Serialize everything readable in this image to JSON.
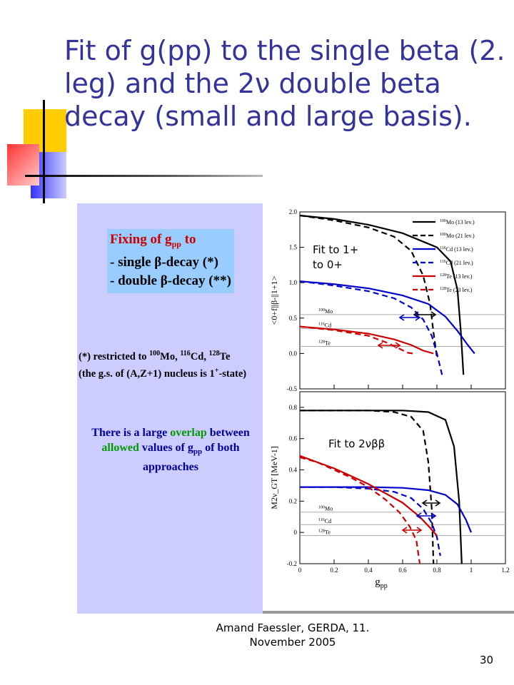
{
  "slide": {
    "title": "Fit of g(pp) to the single beta (2. leg) and the 2ν double beta decay (small and large basis).",
    "footer": "Amand Faessler, GERDA, 11. November 2005",
    "page_number": "30"
  },
  "left_panel": {
    "fix_title_a": "Fixing of g",
    "fix_title_sub": "pp",
    "fix_title_b": " to",
    "item1": "- single β-decay (*)",
    "item2": "- double β-decay (**)",
    "note1_a": "(*) restricted to ",
    "mo": "Mo, ",
    "cd": "Cd, ",
    "te": "Te",
    "mass_mo": "100",
    "mass_cd": "116",
    "mass_te": "128",
    "note1_line2": "(the g.s. of (A,Z+1) nucleus is 1",
    "sup_plus": "+",
    "note1_line2_end": "-state)",
    "overlap_a": "There is a large ",
    "overlap_word": "overlap",
    "overlap_b": " between",
    "allowed_word": "allowed",
    "overlap_c": " values of g",
    "overlap_d": " of both",
    "overlap_e": "approaches"
  },
  "annotations": {
    "top_fit_line1": "Fit to 1+",
    "top_fit_line2": "to 0+",
    "bottom_fit": "Fit to 2νββ"
  },
  "chart_data": [
    {
      "type": "line",
      "title": "",
      "xlabel": "",
      "ylabel": "<0+f||β-||1+1>",
      "xlim": [
        0,
        1.2
      ],
      "ylim": [
        -0.5,
        2.0
      ],
      "y_ticks": [
        "2.0",
        "1.5",
        "1.0",
        "0.5",
        "0.0",
        "-0.5"
      ],
      "reference_labels": [
        {
          "mass": "100",
          "label": "Mo",
          "y": 0.55
        },
        {
          "mass": "116",
          "label": "Cd",
          "y": 0.35
        },
        {
          "mass": "128",
          "label": "Te",
          "y": 0.1
        }
      ],
      "legend": [
        {
          "mass": "100",
          "name": "Mo (13 lev.)",
          "color": "#000000",
          "style": "solid"
        },
        {
          "mass": "100",
          "name": "Mo (21 lev.)",
          "color": "#000000",
          "style": "dashed"
        },
        {
          "mass": "116",
          "name": "Cd (13 lev.)",
          "color": "#0000cc",
          "style": "solid"
        },
        {
          "mass": "116",
          "name": "Cd (21 lev.)",
          "color": "#0000cc",
          "style": "dashed"
        },
        {
          "mass": "128",
          "name": "Te (13 lev.)",
          "color": "#cc0000",
          "style": "solid"
        },
        {
          "mass": "128",
          "name": "Te (23 lev.)",
          "color": "#cc0000",
          "style": "dashed"
        }
      ],
      "series": [
        {
          "color": "#000000",
          "style": "solid",
          "x": [
            0,
            0.2,
            0.4,
            0.6,
            0.8,
            0.88,
            0.92,
            0.94,
            0.955
          ],
          "y": [
            1.95,
            1.9,
            1.82,
            1.7,
            1.5,
            1.3,
            0.9,
            0.3,
            -0.3
          ]
        },
        {
          "color": "#000000",
          "style": "dashed",
          "x": [
            0,
            0.2,
            0.4,
            0.55,
            0.65,
            0.72,
            0.76,
            0.78,
            0.8
          ],
          "y": [
            1.95,
            1.88,
            1.78,
            1.65,
            1.45,
            1.1,
            0.7,
            0.3,
            -0.05
          ]
        },
        {
          "color": "#0000cc",
          "style": "solid",
          "x": [
            0,
            0.2,
            0.4,
            0.6,
            0.75,
            0.85,
            0.92,
            0.98,
            1.02
          ],
          "y": [
            1.02,
            0.98,
            0.92,
            0.82,
            0.7,
            0.52,
            0.32,
            0.12,
            0.0
          ]
        },
        {
          "color": "#0000cc",
          "style": "dashed",
          "x": [
            0,
            0.2,
            0.4,
            0.55,
            0.65,
            0.72,
            0.77,
            0.8,
            0.83
          ],
          "y": [
            1.02,
            0.96,
            0.88,
            0.78,
            0.65,
            0.48,
            0.25,
            0.0,
            -0.3
          ]
        },
        {
          "color": "#cc0000",
          "style": "solid",
          "x": [
            0,
            0.2,
            0.4,
            0.55,
            0.65,
            0.72,
            0.78
          ],
          "y": [
            0.38,
            0.34,
            0.28,
            0.2,
            0.12,
            0.04,
            0.0
          ]
        },
        {
          "color": "#cc0000",
          "style": "dashed",
          "x": [
            0,
            0.2,
            0.4,
            0.5,
            0.58,
            0.63,
            0.66
          ],
          "y": [
            0.38,
            0.33,
            0.25,
            0.16,
            0.07,
            0.01,
            0.0
          ]
        }
      ]
    },
    {
      "type": "line",
      "title": "",
      "xlabel": "g_pp",
      "ylabel": "M2ν_GT [MeV-1]",
      "xlim": [
        0,
        1.2
      ],
      "ylim": [
        -0.2,
        0.9
      ],
      "x_ticks": [
        "0",
        "0.2",
        "0.4",
        "0.6",
        "0.8",
        "1",
        "1.2"
      ],
      "y_ticks": [
        "0.8",
        "0.6",
        "0.4",
        "0.2",
        "0",
        "-0.2"
      ],
      "reference_labels": [
        {
          "mass": "100",
          "label": "Mo",
          "y": 0.13
        },
        {
          "mass": "116",
          "label": "Cd",
          "y": 0.05
        },
        {
          "mass": "128",
          "label": "Te",
          "y": -0.02
        }
      ],
      "series": [
        {
          "color": "#000000",
          "style": "solid",
          "x": [
            0,
            0.2,
            0.4,
            0.6,
            0.75,
            0.85,
            0.9,
            0.93,
            0.945
          ],
          "y": [
            0.78,
            0.78,
            0.78,
            0.78,
            0.77,
            0.72,
            0.55,
            0.2,
            -0.2
          ]
        },
        {
          "color": "#000000",
          "style": "dashed",
          "x": [
            0,
            0.2,
            0.4,
            0.55,
            0.65,
            0.72,
            0.75,
            0.77,
            0.78
          ],
          "y": [
            0.78,
            0.78,
            0.78,
            0.77,
            0.74,
            0.65,
            0.45,
            0.15,
            -0.2
          ]
        },
        {
          "color": "#0000cc",
          "style": "solid",
          "x": [
            0,
            0.2,
            0.4,
            0.6,
            0.75,
            0.85,
            0.92,
            0.97,
            1.0
          ],
          "y": [
            0.29,
            0.29,
            0.29,
            0.285,
            0.27,
            0.24,
            0.18,
            0.08,
            0.0
          ]
        },
        {
          "color": "#0000cc",
          "style": "dashed",
          "x": [
            0,
            0.2,
            0.4,
            0.55,
            0.65,
            0.72,
            0.77,
            0.8,
            0.82
          ],
          "y": [
            0.29,
            0.29,
            0.28,
            0.26,
            0.22,
            0.15,
            0.06,
            -0.03,
            -0.15
          ]
        },
        {
          "color": "#cc0000",
          "style": "solid",
          "x": [
            0,
            0.1,
            0.2,
            0.3,
            0.4,
            0.5,
            0.6,
            0.7,
            0.76,
            0.8
          ],
          "y": [
            0.49,
            0.45,
            0.41,
            0.36,
            0.31,
            0.25,
            0.19,
            0.1,
            0.03,
            -0.02
          ]
        },
        {
          "color": "#cc0000",
          "style": "dashed",
          "x": [
            0,
            0.1,
            0.2,
            0.3,
            0.4,
            0.5,
            0.58,
            0.64,
            0.68,
            0.7
          ],
          "y": [
            0.48,
            0.45,
            0.4,
            0.35,
            0.29,
            0.21,
            0.13,
            0.04,
            -0.05,
            -0.2
          ]
        }
      ]
    }
  ]
}
